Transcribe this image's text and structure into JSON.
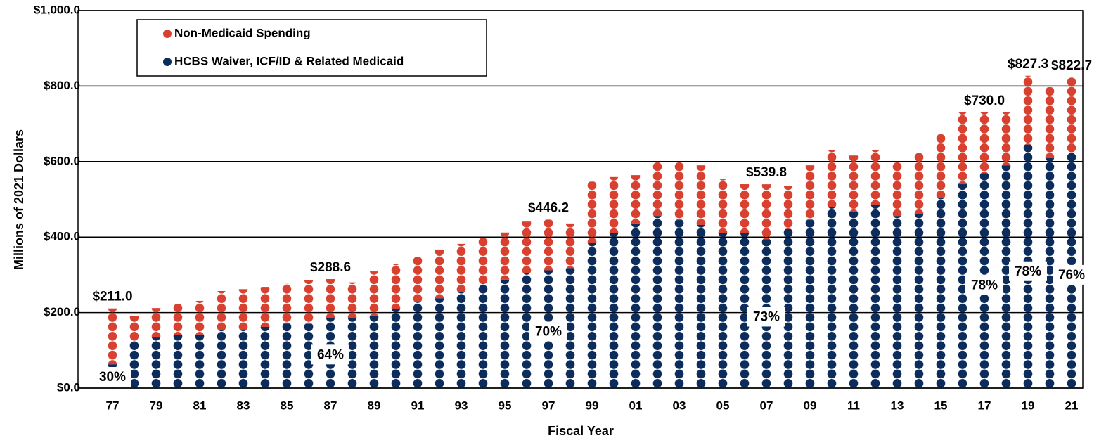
{
  "chart_data": {
    "type": "bar",
    "stacked": true,
    "x_label": "Fiscal Year",
    "y_label": "Millions of 2021 Dollars",
    "categories": [
      "77",
      null,
      "79",
      null,
      "81",
      null,
      "83",
      null,
      "85",
      null,
      "87",
      null,
      "89",
      null,
      "91",
      null,
      "93",
      null,
      "95",
      null,
      "97",
      null,
      "99",
      null,
      "01",
      null,
      "03",
      null,
      "05",
      null,
      "07",
      null,
      "09",
      null,
      "11",
      null,
      "13",
      null,
      "15",
      null,
      "17",
      null,
      "19",
      null,
      "21"
    ],
    "series": [
      {
        "name": "Non-Medicaid Spending",
        "color": "#d8402f",
        "values": [
          148.0,
          69,
          78,
          83,
          89,
          104,
          109,
          106,
          105,
          116,
          103.6,
          94,
          117,
          119,
          121,
          129,
          127,
          120,
          125,
          136,
          134.2,
          118,
          162,
          149,
          128,
          144,
          153,
          158,
          143,
          130,
          145.8,
          115,
          145,
          152,
          150,
          145,
          144,
          164,
          171,
          190,
          161.0,
          140,
          182.3,
          188,
          197.7
        ]
      },
      {
        "name": "HCBS Waiver, ICF/ID & Related Medicaid",
        "color": "#0c2d5c",
        "values": [
          63,
          121,
          134,
          140,
          142,
          153,
          153,
          162,
          171,
          170,
          185,
          186,
          192,
          209,
          227,
          238,
          255,
          277,
          287,
          305,
          312,
          318,
          385,
          410,
          436,
          456,
          445,
          432,
          410,
          410,
          394,
          421,
          445,
          479,
          466,
          486,
          456,
          460,
          503,
          540,
          569,
          590,
          645,
          609,
          625
        ]
      }
    ],
    "total_labels": [
      {
        "x": "77",
        "text": "$211.0"
      },
      {
        "x": "87",
        "text": "$288.6"
      },
      {
        "x": "97",
        "text": "$446.2"
      },
      {
        "x": "07",
        "text": "$539.8"
      },
      {
        "x": "17",
        "text": "$730.0"
      },
      {
        "x": "19",
        "text": "$827.3"
      },
      {
        "x": "21",
        "text": "$822.7"
      }
    ],
    "share_labels": [
      {
        "x": "77",
        "text": "30%"
      },
      {
        "x": "87",
        "text": "64%"
      },
      {
        "x": "97",
        "text": "70%"
      },
      {
        "x": "07",
        "text": "73%"
      },
      {
        "x": "17",
        "text": "78%"
      },
      {
        "x": "19",
        "text": "78%"
      },
      {
        "x": "21",
        "text": "76%"
      }
    ],
    "ylim": [
      0,
      1000
    ],
    "yticks": [
      {
        "value": 0,
        "label": "$0.0"
      },
      {
        "value": 200,
        "label": "$200.0"
      },
      {
        "value": 400,
        "label": "$400.0"
      },
      {
        "value": 600,
        "label": "$600.0"
      },
      {
        "value": 800,
        "label": "$800.0"
      },
      {
        "value": 1000,
        "label": "$1,000.0"
      }
    ],
    "grid": true,
    "legend": "upper left"
  }
}
